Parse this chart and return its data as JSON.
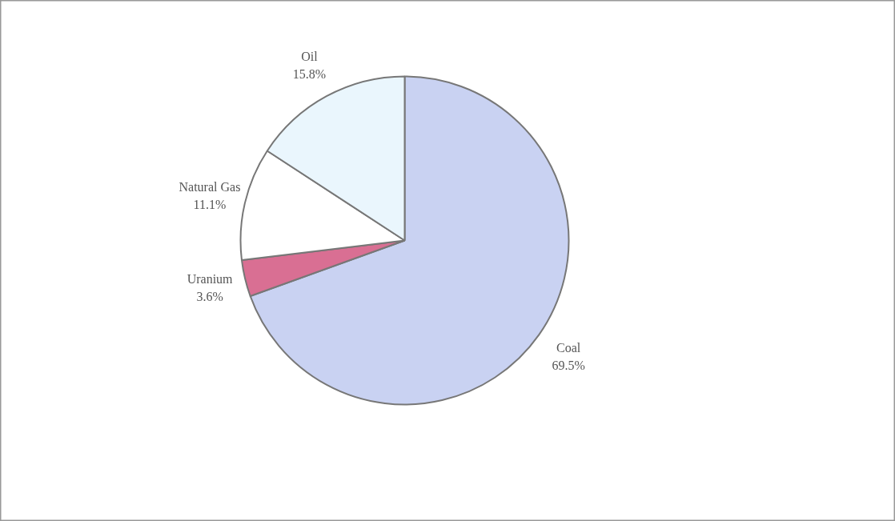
{
  "chart_data": {
    "type": "pie",
    "categories": [
      "Coal",
      "Uranium",
      "Natural Gas",
      "Oil"
    ],
    "values": [
      69.5,
      3.6,
      11.1,
      15.8
    ],
    "value_labels": [
      "69.5%",
      "3.6%",
      "11.1%",
      "15.8%"
    ],
    "colors": [
      "#c9d2f2",
      "#d96f93",
      "#ffffff",
      "#eaf6fd"
    ]
  }
}
